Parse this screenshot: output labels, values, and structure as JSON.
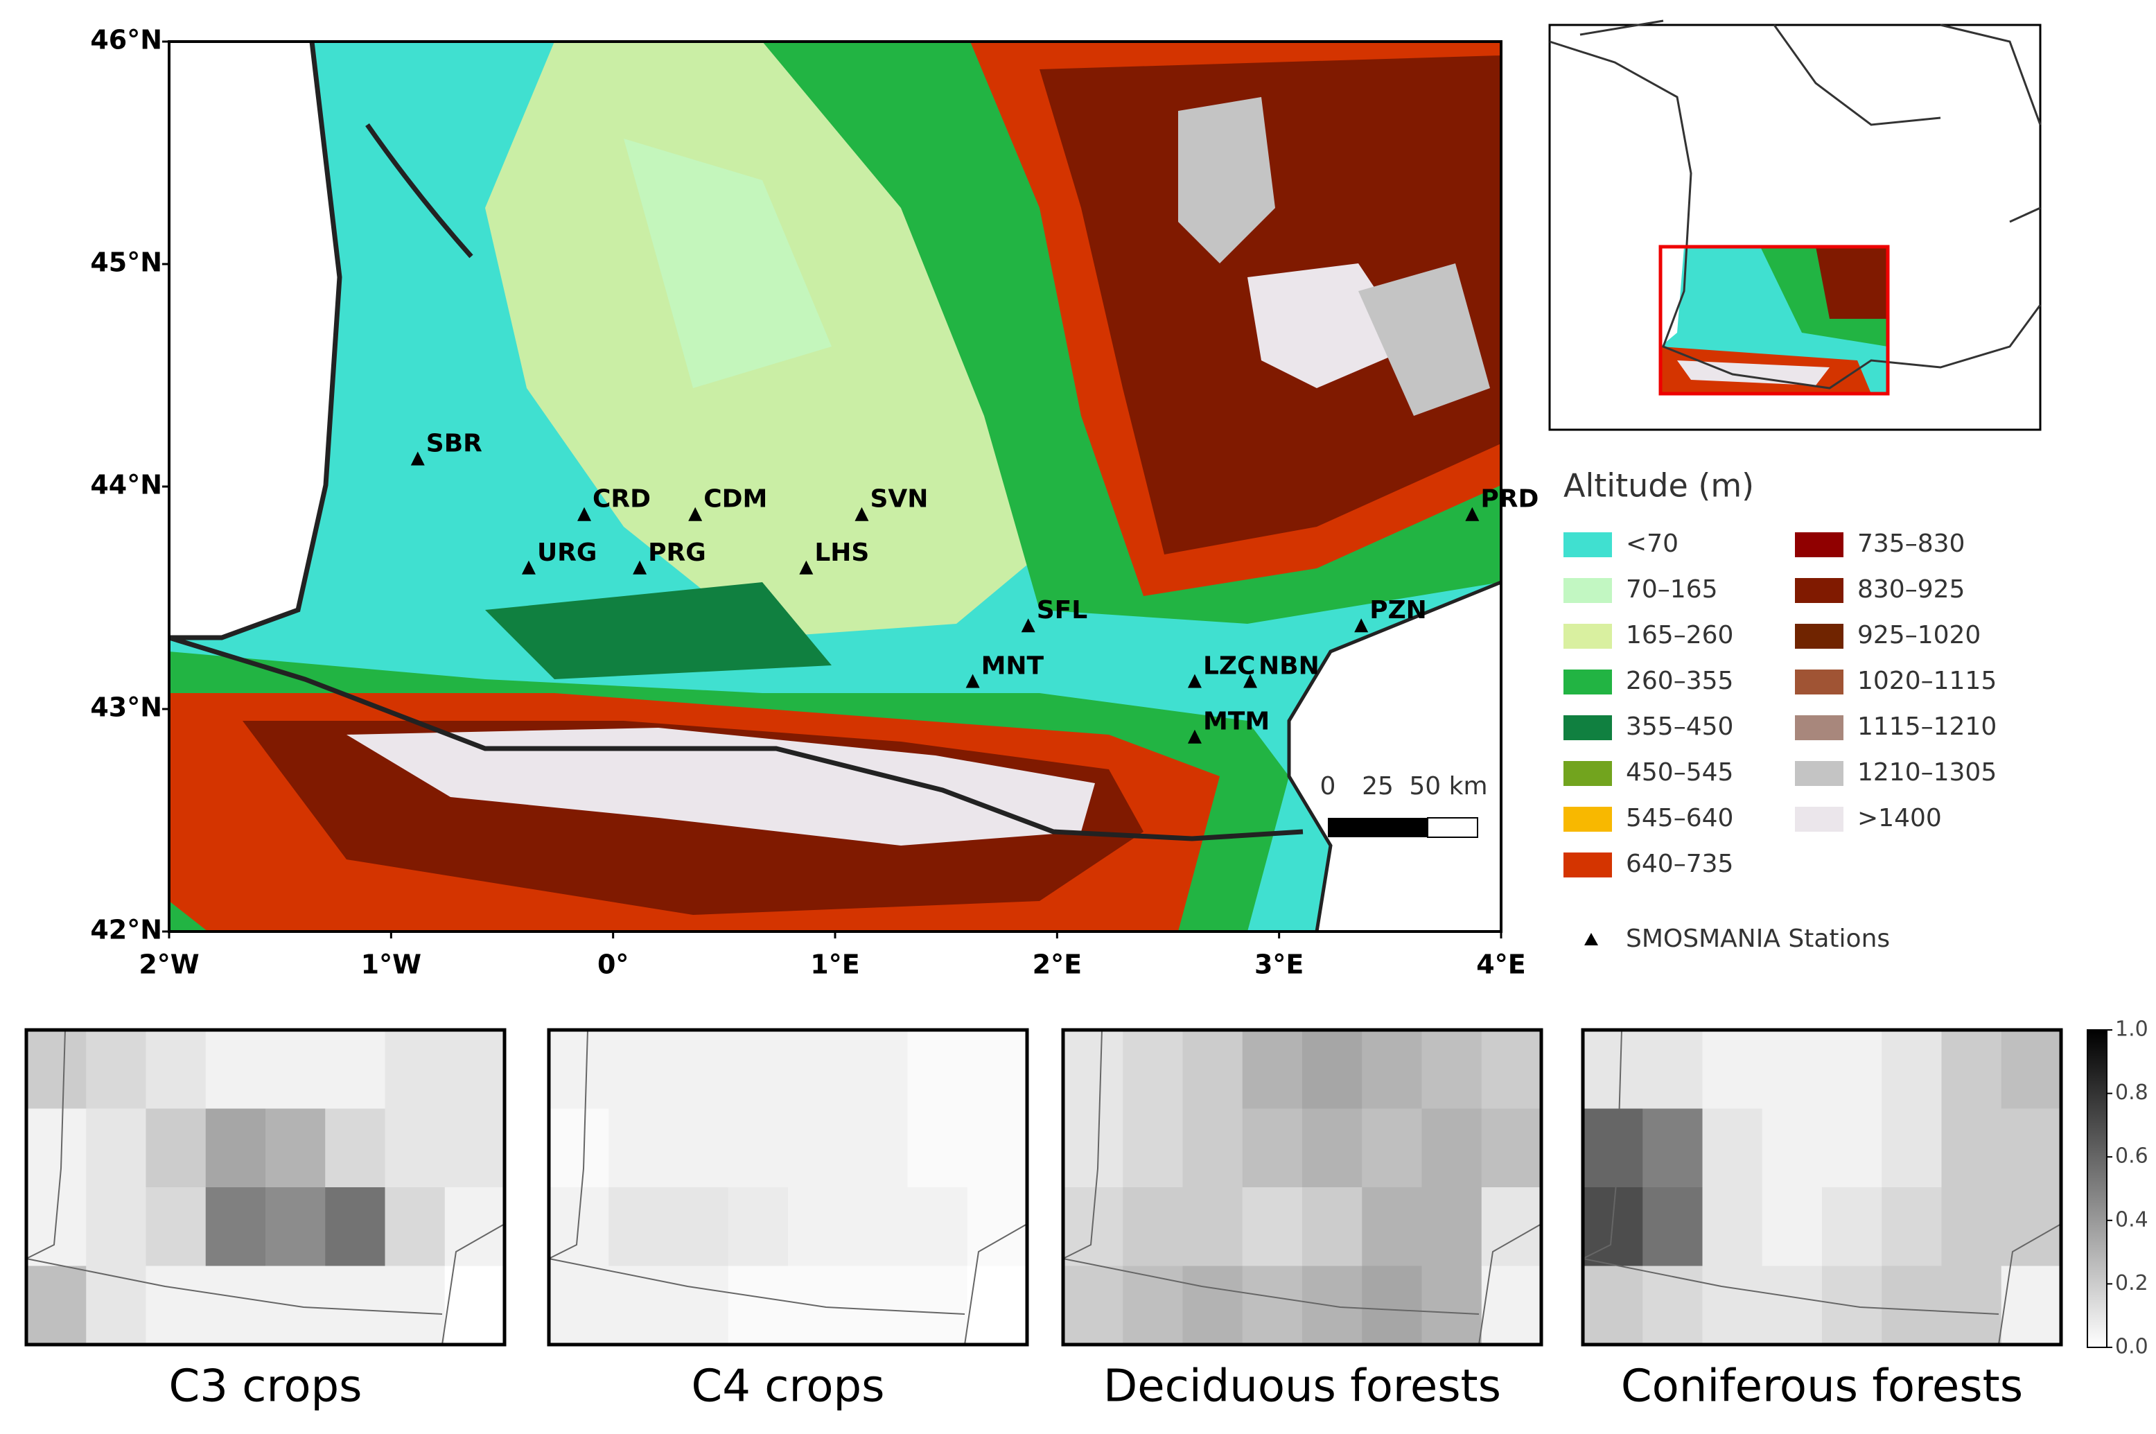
{
  "map": {
    "xlim": [
      -2,
      4
    ],
    "ylim": [
      42,
      46
    ],
    "xticks": [
      {
        "value": -2,
        "label": "2°W"
      },
      {
        "value": -1,
        "label": "1°W"
      },
      {
        "value": 0,
        "label": "0°"
      },
      {
        "value": 1,
        "label": "1°E"
      },
      {
        "value": 2,
        "label": "2°E"
      },
      {
        "value": 3,
        "label": "3°E"
      },
      {
        "value": 4,
        "label": "4°E"
      }
    ],
    "yticks": [
      {
        "value": 42,
        "label": "42°N"
      },
      {
        "value": 43,
        "label": "43°N"
      },
      {
        "value": 44,
        "label": "44°N"
      },
      {
        "value": 45,
        "label": "45°N"
      },
      {
        "value": 46,
        "label": "46°N"
      }
    ],
    "stations": [
      {
        "name": "SBR",
        "lon": -0.88,
        "lat": 44.12
      },
      {
        "name": "CRD",
        "lon": -0.13,
        "lat": 43.87
      },
      {
        "name": "CDM",
        "lon": 0.37,
        "lat": 43.87
      },
      {
        "name": "SVN",
        "lon": 1.12,
        "lat": 43.87
      },
      {
        "name": "URG",
        "lon": -0.38,
        "lat": 43.63
      },
      {
        "name": "PRG",
        "lon": 0.12,
        "lat": 43.63
      },
      {
        "name": "LHS",
        "lon": 0.87,
        "lat": 43.63
      },
      {
        "name": "SFL",
        "lon": 1.87,
        "lat": 43.37
      },
      {
        "name": "MNT",
        "lon": 1.62,
        "lat": 43.12
      },
      {
        "name": "LZC",
        "lon": 2.62,
        "lat": 43.12
      },
      {
        "name": "NBN",
        "lon": 2.87,
        "lat": 43.12
      },
      {
        "name": "MTM",
        "lon": 2.62,
        "lat": 42.87
      },
      {
        "name": "PRD",
        "lon": 3.87,
        "lat": 43.87
      },
      {
        "name": "PZN",
        "lon": 3.37,
        "lat": 43.37
      }
    ],
    "scale_bar": [
      "0",
      "25",
      "50 km"
    ]
  },
  "legend": {
    "title": "Altitude (m)",
    "classes": [
      {
        "label": "<70",
        "color": "#40e0d0"
      },
      {
        "label": "70–165",
        "color": "#c2f7c2"
      },
      {
        "label": "165–260",
        "color": "#d9f0a0"
      },
      {
        "label": "260–355",
        "color": "#22b443"
      },
      {
        "label": "355–450",
        "color": "#108040"
      },
      {
        "label": "450–545",
        "color": "#72a41e"
      },
      {
        "label": "545–640",
        "color": "#f8b800"
      },
      {
        "label": "640–735",
        "color": "#d43400"
      },
      {
        "label": "735–830",
        "color": "#900000"
      },
      {
        "label": "830–925",
        "color": "#801a00"
      },
      {
        "label": "925–1020",
        "color": "#702400"
      },
      {
        "label": "1020–1115",
        "color": "#a05434"
      },
      {
        "label": "1115–1210",
        "color": "#a8877c"
      },
      {
        "label": "1210–1305",
        "color": "#c4c4c4"
      },
      {
        "label": ">1400",
        "color": "#ebe6eb"
      }
    ],
    "stations_note": "SMOSMANIA Stations"
  },
  "panels": [
    {
      "title": "C3 crops",
      "values": [
        [
          0.2,
          0.15,
          0.1,
          0.05,
          0.05,
          0.05,
          0.1,
          0.1
        ],
        [
          0.05,
          0.1,
          0.2,
          0.35,
          0.3,
          0.15,
          0.1,
          0.1
        ],
        [
          0.05,
          0.1,
          0.15,
          0.5,
          0.45,
          0.55,
          0.15,
          0.05
        ],
        [
          0.25,
          0.1,
          0.05,
          0.05,
          0.05,
          0.05,
          0.05,
          0
        ]
      ]
    },
    {
      "title": "C4 crops",
      "values": [
        [
          0.05,
          0.05,
          0.05,
          0.05,
          0.05,
          0.05,
          0.02,
          0.02
        ],
        [
          0.02,
          0.05,
          0.05,
          0.05,
          0.05,
          0.05,
          0.02,
          0.02
        ],
        [
          0.05,
          0.1,
          0.1,
          0.08,
          0.05,
          0.05,
          0.05,
          0.02
        ],
        [
          0.05,
          0.05,
          0.05,
          0.02,
          0.02,
          0.02,
          0.02,
          0
        ]
      ]
    },
    {
      "title": "Deciduous forests",
      "values": [
        [
          0.1,
          0.15,
          0.2,
          0.3,
          0.35,
          0.3,
          0.25,
          0.2
        ],
        [
          0.1,
          0.15,
          0.2,
          0.25,
          0.3,
          0.25,
          0.3,
          0.25
        ],
        [
          0.15,
          0.2,
          0.2,
          0.15,
          0.2,
          0.3,
          0.3,
          0.1
        ],
        [
          0.2,
          0.25,
          0.3,
          0.25,
          0.3,
          0.35,
          0.3,
          0.05
        ]
      ]
    },
    {
      "title": "Coniferous forests",
      "values": [
        [
          0.1,
          0.1,
          0.05,
          0.05,
          0.05,
          0.1,
          0.2,
          0.25
        ],
        [
          0.6,
          0.5,
          0.1,
          0.05,
          0.05,
          0.1,
          0.2,
          0.2
        ],
        [
          0.7,
          0.55,
          0.1,
          0.05,
          0.1,
          0.15,
          0.2,
          0.2
        ],
        [
          0.2,
          0.15,
          0.1,
          0.1,
          0.15,
          0.2,
          0.2,
          0.05
        ]
      ]
    }
  ],
  "colorbar": {
    "lim": [
      0,
      1
    ],
    "ticks": [
      {
        "value": 0,
        "label": "0.0"
      },
      {
        "value": 0.2,
        "label": "0.2"
      },
      {
        "value": 0.4,
        "label": "0.4"
      },
      {
        "value": 0.6,
        "label": "0.6"
      },
      {
        "value": 0.8,
        "label": "0.8"
      },
      {
        "value": 1,
        "label": "1.0"
      }
    ]
  }
}
